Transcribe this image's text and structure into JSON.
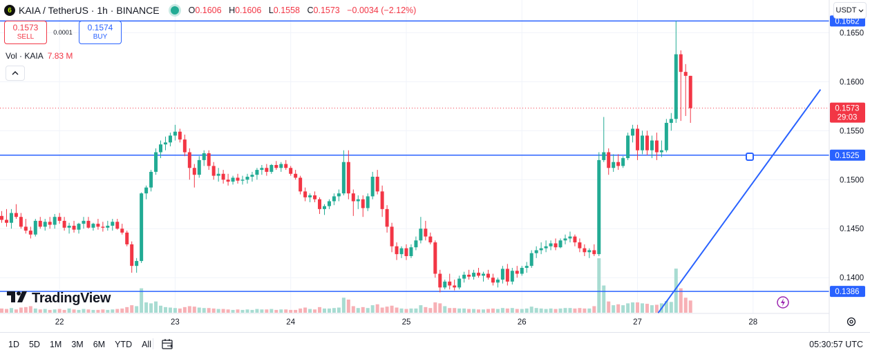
{
  "header": {
    "icon_label": "6",
    "title": "KAIA / TetherUS · 1h · BINANCE",
    "ohlc": {
      "o_label": "O",
      "o": "0.1606",
      "h_label": "H",
      "h": "0.1606",
      "l_label": "L",
      "l": "0.1558",
      "c_label": "C",
      "c": "0.1573",
      "change": "−0.0034 (−2.12%)"
    }
  },
  "trade": {
    "sell_price": "0.1573",
    "sell_label": "SELL",
    "spread": "0.0001",
    "buy_price": "0.1574",
    "buy_label": "BUY"
  },
  "volume": {
    "label": "Vol · KAIA",
    "value": "7.83 M"
  },
  "currency": "USDT",
  "logo_text": "TradingView",
  "bottom": {
    "ranges": [
      "1D",
      "5D",
      "1M",
      "3M",
      "6M",
      "YTD",
      "All"
    ],
    "clock": "05:30:57 UTC"
  },
  "colors": {
    "up": "#22ab94",
    "down": "#f23645",
    "line": "#2962ff",
    "vol_up": "#a8dcd2",
    "vol_down": "#f7b0b5"
  },
  "chart_data": {
    "type": "candlestick",
    "symbol": "KAIA/USDT",
    "interval": "1h",
    "ylim": [
      0.13635,
      0.16834
    ],
    "y_ticks": [
      "0.1650",
      "0.1600",
      "0.1550",
      "0.1500",
      "0.1450",
      "0.1400"
    ],
    "x_ticks": [
      "22",
      "23",
      "24",
      "25",
      "26",
      "27",
      "28"
    ],
    "horizontal_levels": [
      "0.1662",
      "0.1525",
      "0.1386"
    ],
    "current_price": "0.1573",
    "countdown": "29:03",
    "trendline": {
      "from_price": 0.1364,
      "to_price": 0.1592
    },
    "candles": [
      [
        0.1463,
        0.1468,
        0.1456,
        0.1459
      ],
      [
        0.1459,
        0.147,
        0.1452,
        0.1456
      ],
      [
        0.1456,
        0.147,
        0.145,
        0.1466
      ],
      [
        0.1466,
        0.1475,
        0.146,
        0.1462
      ],
      [
        0.1462,
        0.1466,
        0.145,
        0.1452
      ],
      [
        0.1452,
        0.146,
        0.1445,
        0.1448
      ],
      [
        0.1448,
        0.1452,
        0.144,
        0.1444
      ],
      [
        0.1444,
        0.146,
        0.1442,
        0.1458
      ],
      [
        0.1458,
        0.1462,
        0.145,
        0.1452
      ],
      [
        0.1452,
        0.146,
        0.1448,
        0.1457
      ],
      [
        0.1457,
        0.1462,
        0.145,
        0.1454
      ],
      [
        0.1454,
        0.1465,
        0.145,
        0.1462
      ],
      [
        0.1462,
        0.1466,
        0.1455,
        0.1458
      ],
      [
        0.1458,
        0.1462,
        0.1448,
        0.1451
      ],
      [
        0.1451,
        0.1456,
        0.1445,
        0.1453
      ],
      [
        0.1453,
        0.1458,
        0.1446,
        0.1449
      ],
      [
        0.1449,
        0.1456,
        0.1445,
        0.1455
      ],
      [
        0.1455,
        0.1462,
        0.145,
        0.1458
      ],
      [
        0.1458,
        0.1462,
        0.145,
        0.1451
      ],
      [
        0.1451,
        0.1456,
        0.1448,
        0.1455
      ],
      [
        0.1455,
        0.146,
        0.1449,
        0.1452
      ],
      [
        0.1452,
        0.1457,
        0.1447,
        0.1451
      ],
      [
        0.1451,
        0.1458,
        0.1448,
        0.1453
      ],
      [
        0.1453,
        0.146,
        0.1448,
        0.1457
      ],
      [
        0.1457,
        0.146,
        0.1449,
        0.145
      ],
      [
        0.145,
        0.1455,
        0.1444,
        0.1446
      ],
      [
        0.1446,
        0.1448,
        0.1432,
        0.1434
      ],
      [
        0.1434,
        0.1437,
        0.1405,
        0.1412
      ],
      [
        0.1412,
        0.142,
        0.1405,
        0.1417
      ],
      [
        0.1417,
        0.1487,
        0.1415,
        0.1486
      ],
      [
        0.1486,
        0.1494,
        0.148,
        0.1492
      ],
      [
        0.1492,
        0.151,
        0.1488,
        0.1508
      ],
      [
        0.1508,
        0.1532,
        0.1505,
        0.1528
      ],
      [
        0.1528,
        0.154,
        0.1522,
        0.1536
      ],
      [
        0.1536,
        0.1544,
        0.153,
        0.1538
      ],
      [
        0.1538,
        0.1548,
        0.1534,
        0.1545
      ],
      [
        0.1545,
        0.1556,
        0.154,
        0.1549
      ],
      [
        0.1549,
        0.1552,
        0.1538,
        0.1541
      ],
      [
        0.1541,
        0.1546,
        0.1524,
        0.1528
      ],
      [
        0.1528,
        0.1532,
        0.15,
        0.1512
      ],
      [
        0.1512,
        0.1516,
        0.1492,
        0.1505
      ],
      [
        0.1505,
        0.1524,
        0.1502,
        0.152
      ],
      [
        0.152,
        0.153,
        0.1514,
        0.1527
      ],
      [
        0.1527,
        0.153,
        0.151,
        0.1514
      ],
      [
        0.1514,
        0.1518,
        0.15,
        0.1504
      ],
      [
        0.1504,
        0.1512,
        0.1498,
        0.1506
      ],
      [
        0.1506,
        0.151,
        0.1496,
        0.15
      ],
      [
        0.15,
        0.1506,
        0.1494,
        0.1498
      ],
      [
        0.1498,
        0.1504,
        0.1495,
        0.1502
      ],
      [
        0.1502,
        0.1506,
        0.1496,
        0.1499
      ],
      [
        0.1499,
        0.1504,
        0.1495,
        0.15
      ],
      [
        0.15,
        0.1506,
        0.1496,
        0.1503
      ],
      [
        0.1503,
        0.1508,
        0.1498,
        0.1505
      ],
      [
        0.1505,
        0.1512,
        0.15,
        0.151
      ],
      [
        0.151,
        0.1515,
        0.1505,
        0.1512
      ],
      [
        0.1512,
        0.1516,
        0.1504,
        0.1508
      ],
      [
        0.1508,
        0.1516,
        0.1506,
        0.1515
      ],
      [
        0.1515,
        0.1519,
        0.151,
        0.1512
      ],
      [
        0.1512,
        0.1518,
        0.1508,
        0.1516
      ],
      [
        0.1516,
        0.152,
        0.151,
        0.1512
      ],
      [
        0.1512,
        0.1514,
        0.1504,
        0.1506
      ],
      [
        0.1506,
        0.151,
        0.15,
        0.1502
      ],
      [
        0.1502,
        0.1504,
        0.1485,
        0.1488
      ],
      [
        0.1488,
        0.1492,
        0.1478,
        0.1482
      ],
      [
        0.1482,
        0.1486,
        0.1477,
        0.1484
      ],
      [
        0.1484,
        0.1488,
        0.1477,
        0.148
      ],
      [
        0.148,
        0.1482,
        0.1465,
        0.147
      ],
      [
        0.147,
        0.1475,
        0.1464,
        0.1473
      ],
      [
        0.1473,
        0.148,
        0.147,
        0.1478
      ],
      [
        0.1478,
        0.1486,
        0.1474,
        0.1483
      ],
      [
        0.1483,
        0.149,
        0.1478,
        0.1486
      ],
      [
        0.1486,
        0.153,
        0.1484,
        0.1518
      ],
      [
        0.1518,
        0.153,
        0.148,
        0.1486
      ],
      [
        0.1486,
        0.149,
        0.1463,
        0.1478
      ],
      [
        0.1478,
        0.1484,
        0.147,
        0.148
      ],
      [
        0.148,
        0.1484,
        0.1462,
        0.1471
      ],
      [
        0.1471,
        0.1486,
        0.1468,
        0.1483
      ],
      [
        0.1483,
        0.1508,
        0.148,
        0.1503
      ],
      [
        0.1503,
        0.151,
        0.1485,
        0.1488
      ],
      [
        0.1488,
        0.1494,
        0.1462,
        0.147
      ],
      [
        0.147,
        0.1474,
        0.1446,
        0.1452
      ],
      [
        0.1452,
        0.1456,
        0.1426,
        0.1432
      ],
      [
        0.1432,
        0.1436,
        0.1418,
        0.1424
      ],
      [
        0.1424,
        0.1432,
        0.142,
        0.143
      ],
      [
        0.143,
        0.1434,
        0.1418,
        0.1422
      ],
      [
        0.1422,
        0.1434,
        0.142,
        0.1431
      ],
      [
        0.1431,
        0.1442,
        0.1428,
        0.1438
      ],
      [
        0.1438,
        0.1462,
        0.1435,
        0.145
      ],
      [
        0.145,
        0.1458,
        0.1438,
        0.1442
      ],
      [
        0.1442,
        0.1446,
        0.1434,
        0.1436
      ],
      [
        0.1436,
        0.1438,
        0.14,
        0.1404
      ],
      [
        0.1404,
        0.1408,
        0.1385,
        0.139
      ],
      [
        0.139,
        0.1398,
        0.1388,
        0.1396
      ],
      [
        0.1396,
        0.1404,
        0.1388,
        0.1392
      ],
      [
        0.1392,
        0.1398,
        0.1387,
        0.139
      ],
      [
        0.139,
        0.1402,
        0.1388,
        0.1399
      ],
      [
        0.1399,
        0.1406,
        0.1395,
        0.1403
      ],
      [
        0.1403,
        0.1408,
        0.1398,
        0.1401
      ],
      [
        0.1401,
        0.1408,
        0.1398,
        0.1405
      ],
      [
        0.1405,
        0.141,
        0.14,
        0.1402
      ],
      [
        0.1402,
        0.1406,
        0.1396,
        0.1404
      ],
      [
        0.1404,
        0.1408,
        0.1398,
        0.14
      ],
      [
        0.14,
        0.1404,
        0.1392,
        0.1395
      ],
      [
        0.1395,
        0.14,
        0.139,
        0.1398
      ],
      [
        0.1398,
        0.1412,
        0.1394,
        0.1409
      ],
      [
        0.1409,
        0.1414,
        0.1392,
        0.1396
      ],
      [
        0.1396,
        0.141,
        0.1393,
        0.1407
      ],
      [
        0.1407,
        0.1412,
        0.14,
        0.1404
      ],
      [
        0.1404,
        0.1412,
        0.1402,
        0.141
      ],
      [
        0.141,
        0.1416,
        0.1405,
        0.1412
      ],
      [
        0.1412,
        0.1428,
        0.141,
        0.1425
      ],
      [
        0.1425,
        0.1432,
        0.142,
        0.1428
      ],
      [
        0.1428,
        0.1436,
        0.1424,
        0.143
      ],
      [
        0.143,
        0.1438,
        0.1426,
        0.1432
      ],
      [
        0.1432,
        0.1438,
        0.1428,
        0.1435
      ],
      [
        0.1435,
        0.144,
        0.1428,
        0.1431
      ],
      [
        0.1431,
        0.144,
        0.143,
        0.1438
      ],
      [
        0.1438,
        0.1444,
        0.1434,
        0.144
      ],
      [
        0.144,
        0.1447,
        0.1436,
        0.1442
      ],
      [
        0.1442,
        0.1444,
        0.1432,
        0.1436
      ],
      [
        0.1436,
        0.144,
        0.1426,
        0.143
      ],
      [
        0.143,
        0.1434,
        0.1422,
        0.1426
      ],
      [
        0.1426,
        0.143,
        0.142,
        0.1428
      ],
      [
        0.1428,
        0.1434,
        0.1422,
        0.1424
      ],
      [
        0.1424,
        0.1528,
        0.1422,
        0.152
      ],
      [
        0.152,
        0.1564,
        0.1518,
        0.1528
      ],
      [
        0.1528,
        0.1532,
        0.1505,
        0.1512
      ],
      [
        0.1512,
        0.1526,
        0.1508,
        0.1518
      ],
      [
        0.1518,
        0.1526,
        0.151,
        0.1514
      ],
      [
        0.1514,
        0.1524,
        0.1512,
        0.1522
      ],
      [
        0.1522,
        0.1548,
        0.152,
        0.1545
      ],
      [
        0.1545,
        0.1556,
        0.1538,
        0.1552
      ],
      [
        0.1552,
        0.1556,
        0.152,
        0.153
      ],
      [
        0.153,
        0.155,
        0.1526,
        0.1545
      ],
      [
        0.1545,
        0.155,
        0.1525,
        0.153
      ],
      [
        0.153,
        0.1545,
        0.1522,
        0.154
      ],
      [
        0.154,
        0.1548,
        0.152,
        0.1528
      ],
      [
        0.1528,
        0.154,
        0.1523,
        0.153
      ],
      [
        0.153,
        0.1562,
        0.1528,
        0.1558
      ],
      [
        0.1558,
        0.1568,
        0.155,
        0.1562
      ],
      [
        0.1562,
        0.1662,
        0.1558,
        0.1628
      ],
      [
        0.1628,
        0.1632,
        0.156,
        0.161
      ],
      [
        0.161,
        0.1618,
        0.1565,
        0.1606
      ],
      [
        0.1606,
        0.1606,
        0.1558,
        0.1573
      ]
    ],
    "volume_bars": [
      0.9,
      0.8,
      1.0,
      0.7,
      1.1,
      1.2,
      1.4,
      0.9,
      0.7,
      0.8,
      0.6,
      0.7,
      0.8,
      0.6,
      0.9,
      0.7,
      0.6,
      0.8,
      0.7,
      0.6,
      0.6,
      0.7,
      0.6,
      0.7,
      0.8,
      0.9,
      1.2,
      1.6,
      1.4,
      5.2,
      2.2,
      2.0,
      2.4,
      1.5,
      1.2,
      1.1,
      1.0,
      0.9,
      1.2,
      1.4,
      1.3,
      1.1,
      1.0,
      1.0,
      0.9,
      0.8,
      0.8,
      0.7,
      0.6,
      0.7,
      0.6,
      0.7,
      0.6,
      0.8,
      0.7,
      0.7,
      0.8,
      0.6,
      0.7,
      0.7,
      0.6,
      0.6,
      0.9,
      1.1,
      0.8,
      0.7,
      1.2,
      0.9,
      0.9,
      1.0,
      1.1,
      3.2,
      2.8,
      1.4,
      1.0,
      1.2,
      1.0,
      1.6,
      1.8,
      1.1,
      1.3,
      1.5,
      1.1,
      0.9,
      0.8,
      0.9,
      0.9,
      1.6,
      1.2,
      1.0,
      2.2,
      2.0,
      1.4,
      1.0,
      1.0,
      0.9,
      0.9,
      0.8,
      0.8,
      0.7,
      0.7,
      0.8,
      0.9,
      0.8,
      1.0,
      0.9,
      1.0,
      0.8,
      0.8,
      0.9,
      1.3,
      1.0,
      0.9,
      0.8,
      0.9,
      0.8,
      0.9,
      1.0,
      1.0,
      0.9,
      1.0,
      0.9,
      0.9,
      1.4,
      11.6,
      5.8,
      2.4,
      1.6,
      1.8,
      1.6,
      2.0,
      2.2,
      2.2,
      2.0,
      1.9,
      1.6,
      1.7,
      2.0,
      2.5,
      2.3,
      9.4,
      5.2,
      3.2,
      2.6
    ]
  }
}
